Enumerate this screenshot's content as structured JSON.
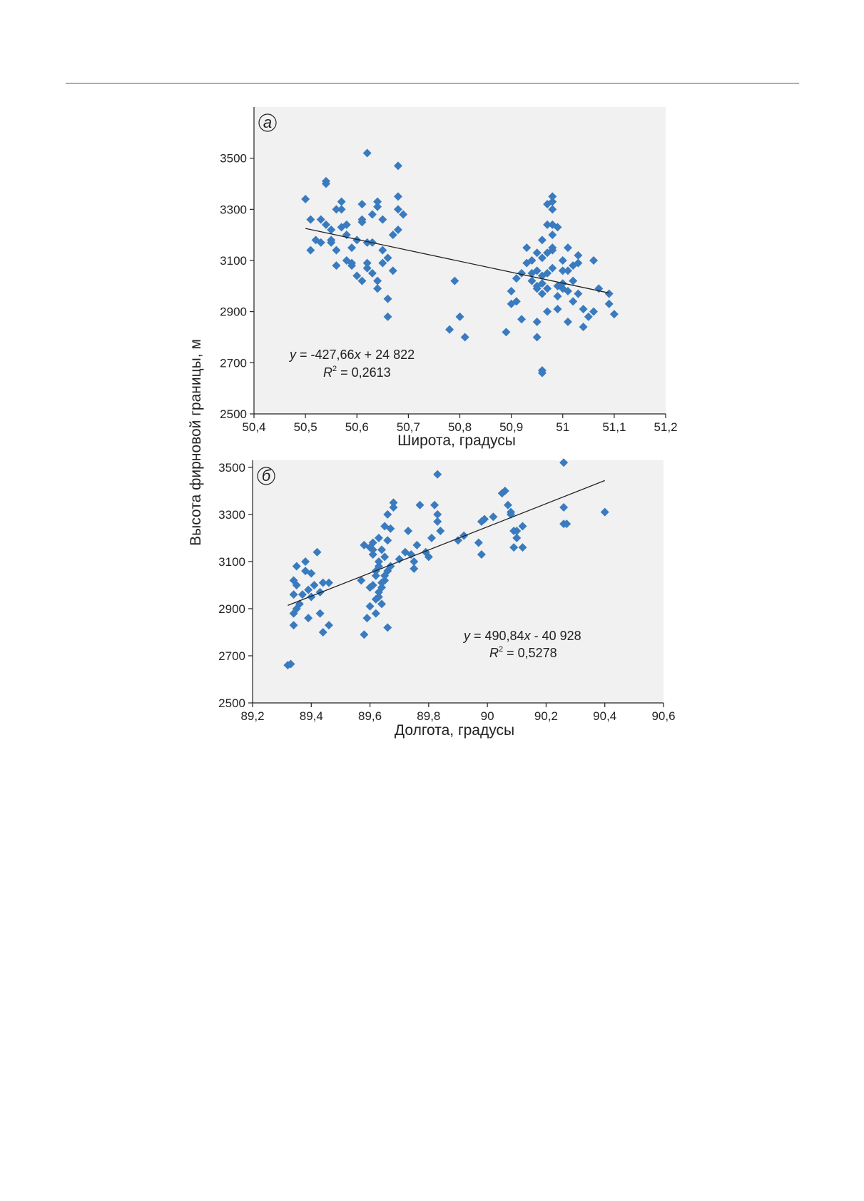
{
  "ylabel": "Высота фирновой границы, м",
  "colors": {
    "marker": "#3a7bbf",
    "trend": "#222222",
    "plot_bg": "#f1f1f1",
    "axis": "#222222"
  },
  "chart_data": [
    {
      "type": "scatter",
      "panel_label": "а",
      "xlabel": "Широта, градусы",
      "ylabel": "Высота фирновой границы, м",
      "xlim": [
        50.4,
        51.2
      ],
      "ylim": [
        2500,
        3700
      ],
      "x_ticks": [
        "50,4",
        "50,5",
        "50,6",
        "50,7",
        "50,8",
        "50,9",
        "51",
        "51,1",
        "51,2"
      ],
      "y_ticks": [
        "2500",
        "2700",
        "2900",
        "3100",
        "3300",
        "3500"
      ],
      "grid": false,
      "trendline": {
        "x1": 50.5,
        "x2": 51.09
      },
      "equation": {
        "prefix": "y",
        "body": " = -427,66",
        "var": "x",
        "suffix": " + 24 822"
      },
      "r2": {
        "r": "R",
        "sup": "2",
        "value": " = 0,2613"
      },
      "points": [
        [
          50.5,
          3340
        ],
        [
          50.51,
          3140
        ],
        [
          50.51,
          3260
        ],
        [
          50.52,
          3180
        ],
        [
          50.53,
          3170
        ],
        [
          50.53,
          3260
        ],
        [
          50.54,
          3240
        ],
        [
          50.54,
          3400
        ],
        [
          50.54,
          3410
        ],
        [
          50.55,
          3220
        ],
        [
          50.55,
          3180
        ],
        [
          50.55,
          3170
        ],
        [
          50.56,
          3140
        ],
        [
          50.56,
          3080
        ],
        [
          50.56,
          3300
        ],
        [
          50.57,
          3300
        ],
        [
          50.57,
          3230
        ],
        [
          50.57,
          3330
        ],
        [
          50.58,
          3240
        ],
        [
          50.58,
          3200
        ],
        [
          50.58,
          3100
        ],
        [
          50.59,
          3090
        ],
        [
          50.59,
          3080
        ],
        [
          50.59,
          3150
        ],
        [
          50.6,
          3040
        ],
        [
          50.6,
          3180
        ],
        [
          50.61,
          3260
        ],
        [
          50.61,
          3250
        ],
        [
          50.61,
          3320
        ],
        [
          50.61,
          3020
        ],
        [
          50.62,
          3070
        ],
        [
          50.62,
          3090
        ],
        [
          50.62,
          3170
        ],
        [
          50.62,
          3520
        ],
        [
          50.63,
          3280
        ],
        [
          50.63,
          3170
        ],
        [
          50.63,
          3050
        ],
        [
          50.64,
          3310
        ],
        [
          50.64,
          3330
        ],
        [
          50.64,
          3020
        ],
        [
          50.64,
          2990
        ],
        [
          50.65,
          3260
        ],
        [
          50.65,
          3090
        ],
        [
          50.65,
          3140
        ],
        [
          50.66,
          3110
        ],
        [
          50.66,
          2950
        ],
        [
          50.66,
          2880
        ],
        [
          50.67,
          3060
        ],
        [
          50.67,
          3200
        ],
        [
          50.68,
          3220
        ],
        [
          50.68,
          3350
        ],
        [
          50.68,
          3470
        ],
        [
          50.68,
          3300
        ],
        [
          50.69,
          3280
        ],
        [
          50.78,
          2830
        ],
        [
          50.79,
          3020
        ],
        [
          50.8,
          2880
        ],
        [
          50.81,
          2800
        ],
        [
          50.89,
          2820
        ],
        [
          50.9,
          2930
        ],
        [
          50.9,
          2980
        ],
        [
          50.91,
          2940
        ],
        [
          50.91,
          3030
        ],
        [
          50.92,
          2870
        ],
        [
          50.92,
          3050
        ],
        [
          50.93,
          3090
        ],
        [
          50.93,
          3150
        ],
        [
          50.94,
          3100
        ],
        [
          50.94,
          3050
        ],
        [
          50.94,
          3020
        ],
        [
          50.95,
          3130
        ],
        [
          50.95,
          3060
        ],
        [
          50.95,
          3000
        ],
        [
          50.95,
          2990
        ],
        [
          50.95,
          2860
        ],
        [
          50.95,
          2800
        ],
        [
          50.96,
          3180
        ],
        [
          50.96,
          3110
        ],
        [
          50.96,
          3040
        ],
        [
          50.96,
          3010
        ],
        [
          50.96,
          2970
        ],
        [
          50.96,
          2670
        ],
        [
          50.96,
          2660
        ],
        [
          50.97,
          3320
        ],
        [
          50.97,
          3240
        ],
        [
          50.97,
          3130
        ],
        [
          50.97,
          3050
        ],
        [
          50.97,
          2990
        ],
        [
          50.97,
          2900
        ],
        [
          50.98,
          3350
        ],
        [
          50.98,
          3330
        ],
        [
          50.98,
          3300
        ],
        [
          50.98,
          3240
        ],
        [
          50.98,
          3200
        ],
        [
          50.98,
          3150
        ],
        [
          50.98,
          3140
        ],
        [
          50.98,
          3070
        ],
        [
          50.99,
          3230
        ],
        [
          50.99,
          3000
        ],
        [
          50.99,
          2960
        ],
        [
          50.99,
          2910
        ],
        [
          51.0,
          3100
        ],
        [
          51.0,
          3060
        ],
        [
          51.0,
          3010
        ],
        [
          51.0,
          2990
        ],
        [
          51.01,
          3150
        ],
        [
          51.01,
          3060
        ],
        [
          51.01,
          2980
        ],
        [
          51.01,
          2860
        ],
        [
          51.02,
          3080
        ],
        [
          51.02,
          3020
        ],
        [
          51.02,
          2940
        ],
        [
          51.03,
          3120
        ],
        [
          51.03,
          3090
        ],
        [
          51.03,
          2970
        ],
        [
          51.04,
          2910
        ],
        [
          51.04,
          2840
        ],
        [
          51.05,
          2880
        ],
        [
          51.06,
          2900
        ],
        [
          51.06,
          3100
        ],
        [
          51.07,
          2990
        ],
        [
          51.09,
          2930
        ],
        [
          51.09,
          2970
        ],
        [
          51.1,
          2890
        ]
      ]
    },
    {
      "type": "scatter",
      "panel_label": "б",
      "xlabel": "Долгота, градусы",
      "ylabel": "Высота фирновой границы, м",
      "xlim": [
        89.2,
        90.6
      ],
      "ylim": [
        2500,
        3530
      ],
      "x_ticks": [
        "89,2",
        "89,4",
        "89,6",
        "89,8",
        "90",
        "90,2",
        "90,4",
        "90,6"
      ],
      "y_ticks": [
        "2500",
        "2700",
        "2900",
        "3100",
        "3300",
        "3500"
      ],
      "grid": false,
      "trendline": {
        "x1": 89.32,
        "x2": 90.4
      },
      "equation": {
        "prefix": "y",
        "body": " = 490,84",
        "var": "x",
        "suffix": " - 40 928"
      },
      "r2": {
        "r": "R",
        "sup": "2",
        "value": " = 0,5278"
      },
      "points": [
        [
          89.32,
          2660
        ],
        [
          89.33,
          2665
        ],
        [
          89.34,
          2830
        ],
        [
          89.34,
          2880
        ],
        [
          89.34,
          3020
        ],
        [
          89.34,
          2960
        ],
        [
          89.35,
          3000
        ],
        [
          89.35,
          2900
        ],
        [
          89.35,
          3080
        ],
        [
          89.36,
          2920
        ],
        [
          89.37,
          2960
        ],
        [
          89.38,
          3100
        ],
        [
          89.38,
          3060
        ],
        [
          89.39,
          2980
        ],
        [
          89.39,
          2860
        ],
        [
          89.4,
          3050
        ],
        [
          89.4,
          2950
        ],
        [
          89.41,
          3000
        ],
        [
          89.42,
          3140
        ],
        [
          89.43,
          2880
        ],
        [
          89.43,
          2970
        ],
        [
          89.44,
          3010
        ],
        [
          89.44,
          2800
        ],
        [
          89.46,
          3010
        ],
        [
          89.46,
          2830
        ],
        [
          89.57,
          3020
        ],
        [
          89.58,
          3170
        ],
        [
          89.58,
          2790
        ],
        [
          89.59,
          2860
        ],
        [
          89.6,
          3160
        ],
        [
          89.6,
          2990
        ],
        [
          89.6,
          2910
        ],
        [
          89.61,
          3150
        ],
        [
          89.61,
          3180
        ],
        [
          89.61,
          3130
        ],
        [
          89.61,
          3000
        ],
        [
          89.62,
          3060
        ],
        [
          89.62,
          3040
        ],
        [
          89.62,
          2880
        ],
        [
          89.62,
          2940
        ],
        [
          89.63,
          3200
        ],
        [
          89.63,
          3100
        ],
        [
          89.63,
          3080
        ],
        [
          89.63,
          2970
        ],
        [
          89.63,
          2950
        ],
        [
          89.64,
          3150
        ],
        [
          89.64,
          3010
        ],
        [
          89.64,
          2990
        ],
        [
          89.64,
          2920
        ],
        [
          89.65,
          3250
        ],
        [
          89.65,
          3120
        ],
        [
          89.65,
          3040
        ],
        [
          89.65,
          3020
        ],
        [
          89.66,
          3300
        ],
        [
          89.66,
          3190
        ],
        [
          89.66,
          3060
        ],
        [
          89.66,
          2820
        ],
        [
          89.67,
          3240
        ],
        [
          89.67,
          3080
        ],
        [
          89.68,
          3350
        ],
        [
          89.68,
          3330
        ],
        [
          89.7,
          3110
        ],
        [
          89.72,
          3140
        ],
        [
          89.73,
          3230
        ],
        [
          89.74,
          3130
        ],
        [
          89.75,
          3100
        ],
        [
          89.75,
          3070
        ],
        [
          89.76,
          3170
        ],
        [
          89.77,
          3340
        ],
        [
          89.79,
          3140
        ],
        [
          89.8,
          3120
        ],
        [
          89.81,
          3200
        ],
        [
          89.82,
          3340
        ],
        [
          89.83,
          3470
        ],
        [
          89.83,
          3300
        ],
        [
          89.83,
          3270
        ],
        [
          89.84,
          3230
        ],
        [
          89.9,
          3190
        ],
        [
          89.92,
          3210
        ],
        [
          89.97,
          3180
        ],
        [
          89.98,
          3270
        ],
        [
          89.98,
          3130
        ],
        [
          89.99,
          3280
        ],
        [
          90.02,
          3290
        ],
        [
          90.05,
          3390
        ],
        [
          90.06,
          3400
        ],
        [
          90.07,
          3340
        ],
        [
          90.08,
          3310
        ],
        [
          90.08,
          3300
        ],
        [
          90.09,
          3230
        ],
        [
          90.09,
          3160
        ],
        [
          90.1,
          3200
        ],
        [
          90.1,
          3230
        ],
        [
          90.12,
          3250
        ],
        [
          90.12,
          3160
        ],
        [
          90.26,
          3520
        ],
        [
          90.26,
          3330
        ],
        [
          90.26,
          3260
        ],
        [
          90.27,
          3260
        ],
        [
          90.4,
          3310
        ]
      ]
    }
  ]
}
